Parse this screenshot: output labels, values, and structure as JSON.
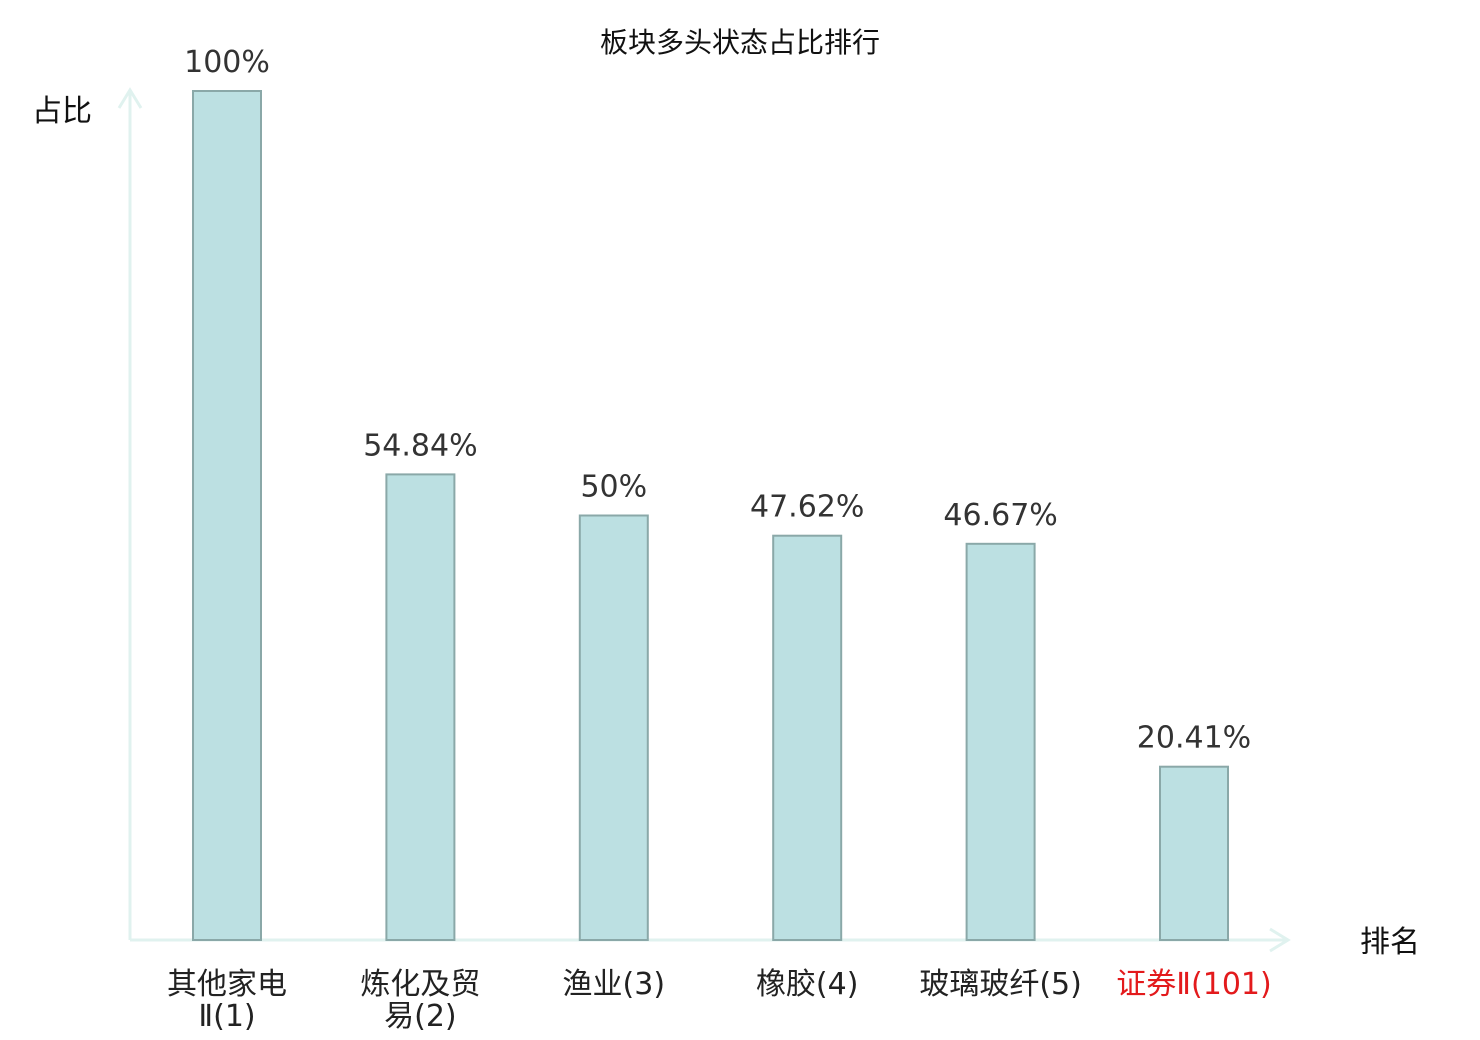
{
  "chart_data": {
    "type": "bar",
    "title": "板块多头状态占比排行",
    "ylabel": "占比",
    "xlabel": "排名",
    "ylim": [
      0,
      100
    ],
    "grid": false,
    "legend": "none",
    "bar_color": "#bce0e2",
    "bar_edge_color": "#8aa8a8",
    "axis_color": "#e0f2ef",
    "highlight_color": "#e31a1c",
    "categories": [
      {
        "name": "其他家电",
        "suffix": "Ⅱ",
        "rank": "(1)",
        "line1": "其他家电",
        "line2": "Ⅱ(1)",
        "highlight": false
      },
      {
        "name": "炼化及贸易",
        "suffix": "",
        "rank": "(2)",
        "line1": "炼化及贸",
        "line2": "易(2)",
        "highlight": false
      },
      {
        "name": "渔业",
        "suffix": "",
        "rank": "(3)",
        "line1": "渔业(3)",
        "line2": "",
        "highlight": false
      },
      {
        "name": "橡胶",
        "suffix": "",
        "rank": "(4)",
        "line1": "橡胶(4)",
        "line2": "",
        "highlight": false
      },
      {
        "name": "玻璃玻纤",
        "suffix": "",
        "rank": "(5)",
        "line1": "玻璃玻纤(5)",
        "line2": "",
        "highlight": false
      },
      {
        "name": "证券",
        "suffix": "Ⅱ",
        "rank": "(101)",
        "line1": "证券Ⅱ(101)",
        "line2": "",
        "highlight": true
      }
    ],
    "values": [
      100,
      54.84,
      50,
      47.62,
      46.67,
      20.41
    ],
    "value_labels": [
      "100%",
      "54.84%",
      "50%",
      "47.62%",
      "46.67%",
      "20.41%"
    ]
  }
}
